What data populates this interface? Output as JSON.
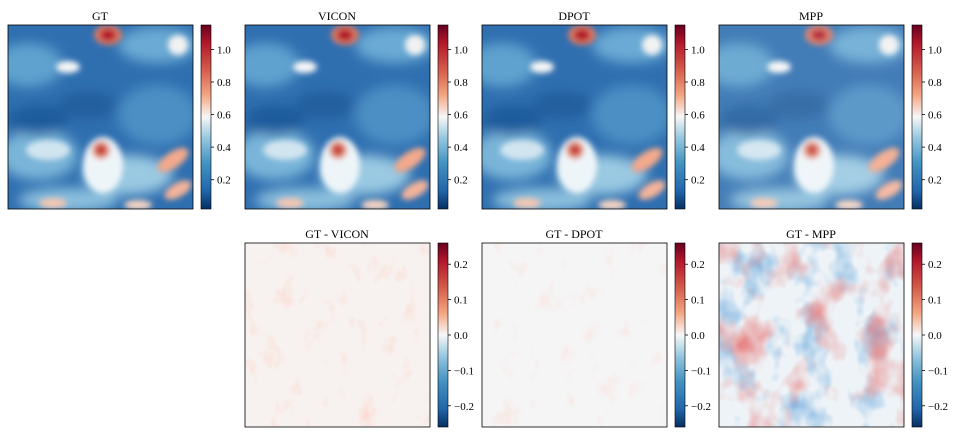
{
  "chart_data": {
    "type": "heatmap",
    "rows": [
      {
        "panels": [
          {
            "title": "GT",
            "colormap": "RdBu_r",
            "colorbar": {
              "range": [
                0.02,
                1.15
              ],
              "ticks": [
                0.2,
                0.4,
                0.6,
                0.8,
                1.0
              ],
              "tick_labels": [
                "0.2",
                "0.4",
                "0.6",
                "0.8",
                "1.0"
              ]
            }
          },
          {
            "title": "VICON",
            "colormap": "RdBu_r",
            "colorbar": {
              "range": [
                0.02,
                1.15
              ],
              "ticks": [
                0.2,
                0.4,
                0.6,
                0.8,
                1.0
              ],
              "tick_labels": [
                "0.2",
                "0.4",
                "0.6",
                "0.8",
                "1.0"
              ]
            }
          },
          {
            "title": "DPOT",
            "colormap": "RdBu_r",
            "colorbar": {
              "range": [
                0.02,
                1.15
              ],
              "ticks": [
                0.2,
                0.4,
                0.6,
                0.8,
                1.0
              ],
              "tick_labels": [
                "0.2",
                "0.4",
                "0.6",
                "0.8",
                "1.0"
              ]
            }
          },
          {
            "title": "MPP",
            "colormap": "RdBu_r",
            "colorbar": {
              "range": [
                0.02,
                1.15
              ],
              "ticks": [
                0.2,
                0.4,
                0.6,
                0.8,
                1.0
              ],
              "tick_labels": [
                "0.2",
                "0.4",
                "0.6",
                "0.8",
                "1.0"
              ]
            }
          }
        ]
      },
      {
        "panels": [
          null,
          {
            "title": "GT - VICON",
            "colormap": "RdBu_r",
            "colorbar": {
              "range": [
                -0.26,
                0.26
              ],
              "ticks": [
                0.2,
                0.1,
                0.0,
                -0.1,
                -0.2
              ],
              "tick_labels": [
                "0.2",
                "0.1",
                "0.0",
                "−0.1",
                "−0.2"
              ]
            }
          },
          {
            "title": "GT - DPOT",
            "colormap": "RdBu_r",
            "colorbar": {
              "range": [
                -0.26,
                0.26
              ],
              "ticks": [
                0.2,
                0.1,
                0.0,
                -0.1,
                -0.2
              ],
              "tick_labels": [
                "0.2",
                "0.1",
                "0.0",
                "−0.1",
                "−0.2"
              ]
            }
          },
          {
            "title": "GT - MPP",
            "colormap": "RdBu_r",
            "colorbar": {
              "range": [
                -0.26,
                0.26
              ],
              "ticks": [
                0.2,
                0.1,
                0.0,
                -0.1,
                -0.2
              ],
              "tick_labels": [
                "0.2",
                "0.1",
                "0.0",
                "−0.1",
                "−0.2"
              ]
            }
          }
        ]
      }
    ]
  },
  "colors": {
    "deep_red": "#67001f",
    "red": "#d6604d",
    "white": "#f7f7f7",
    "blue": "#4393c3",
    "deep_blue": "#053061"
  }
}
